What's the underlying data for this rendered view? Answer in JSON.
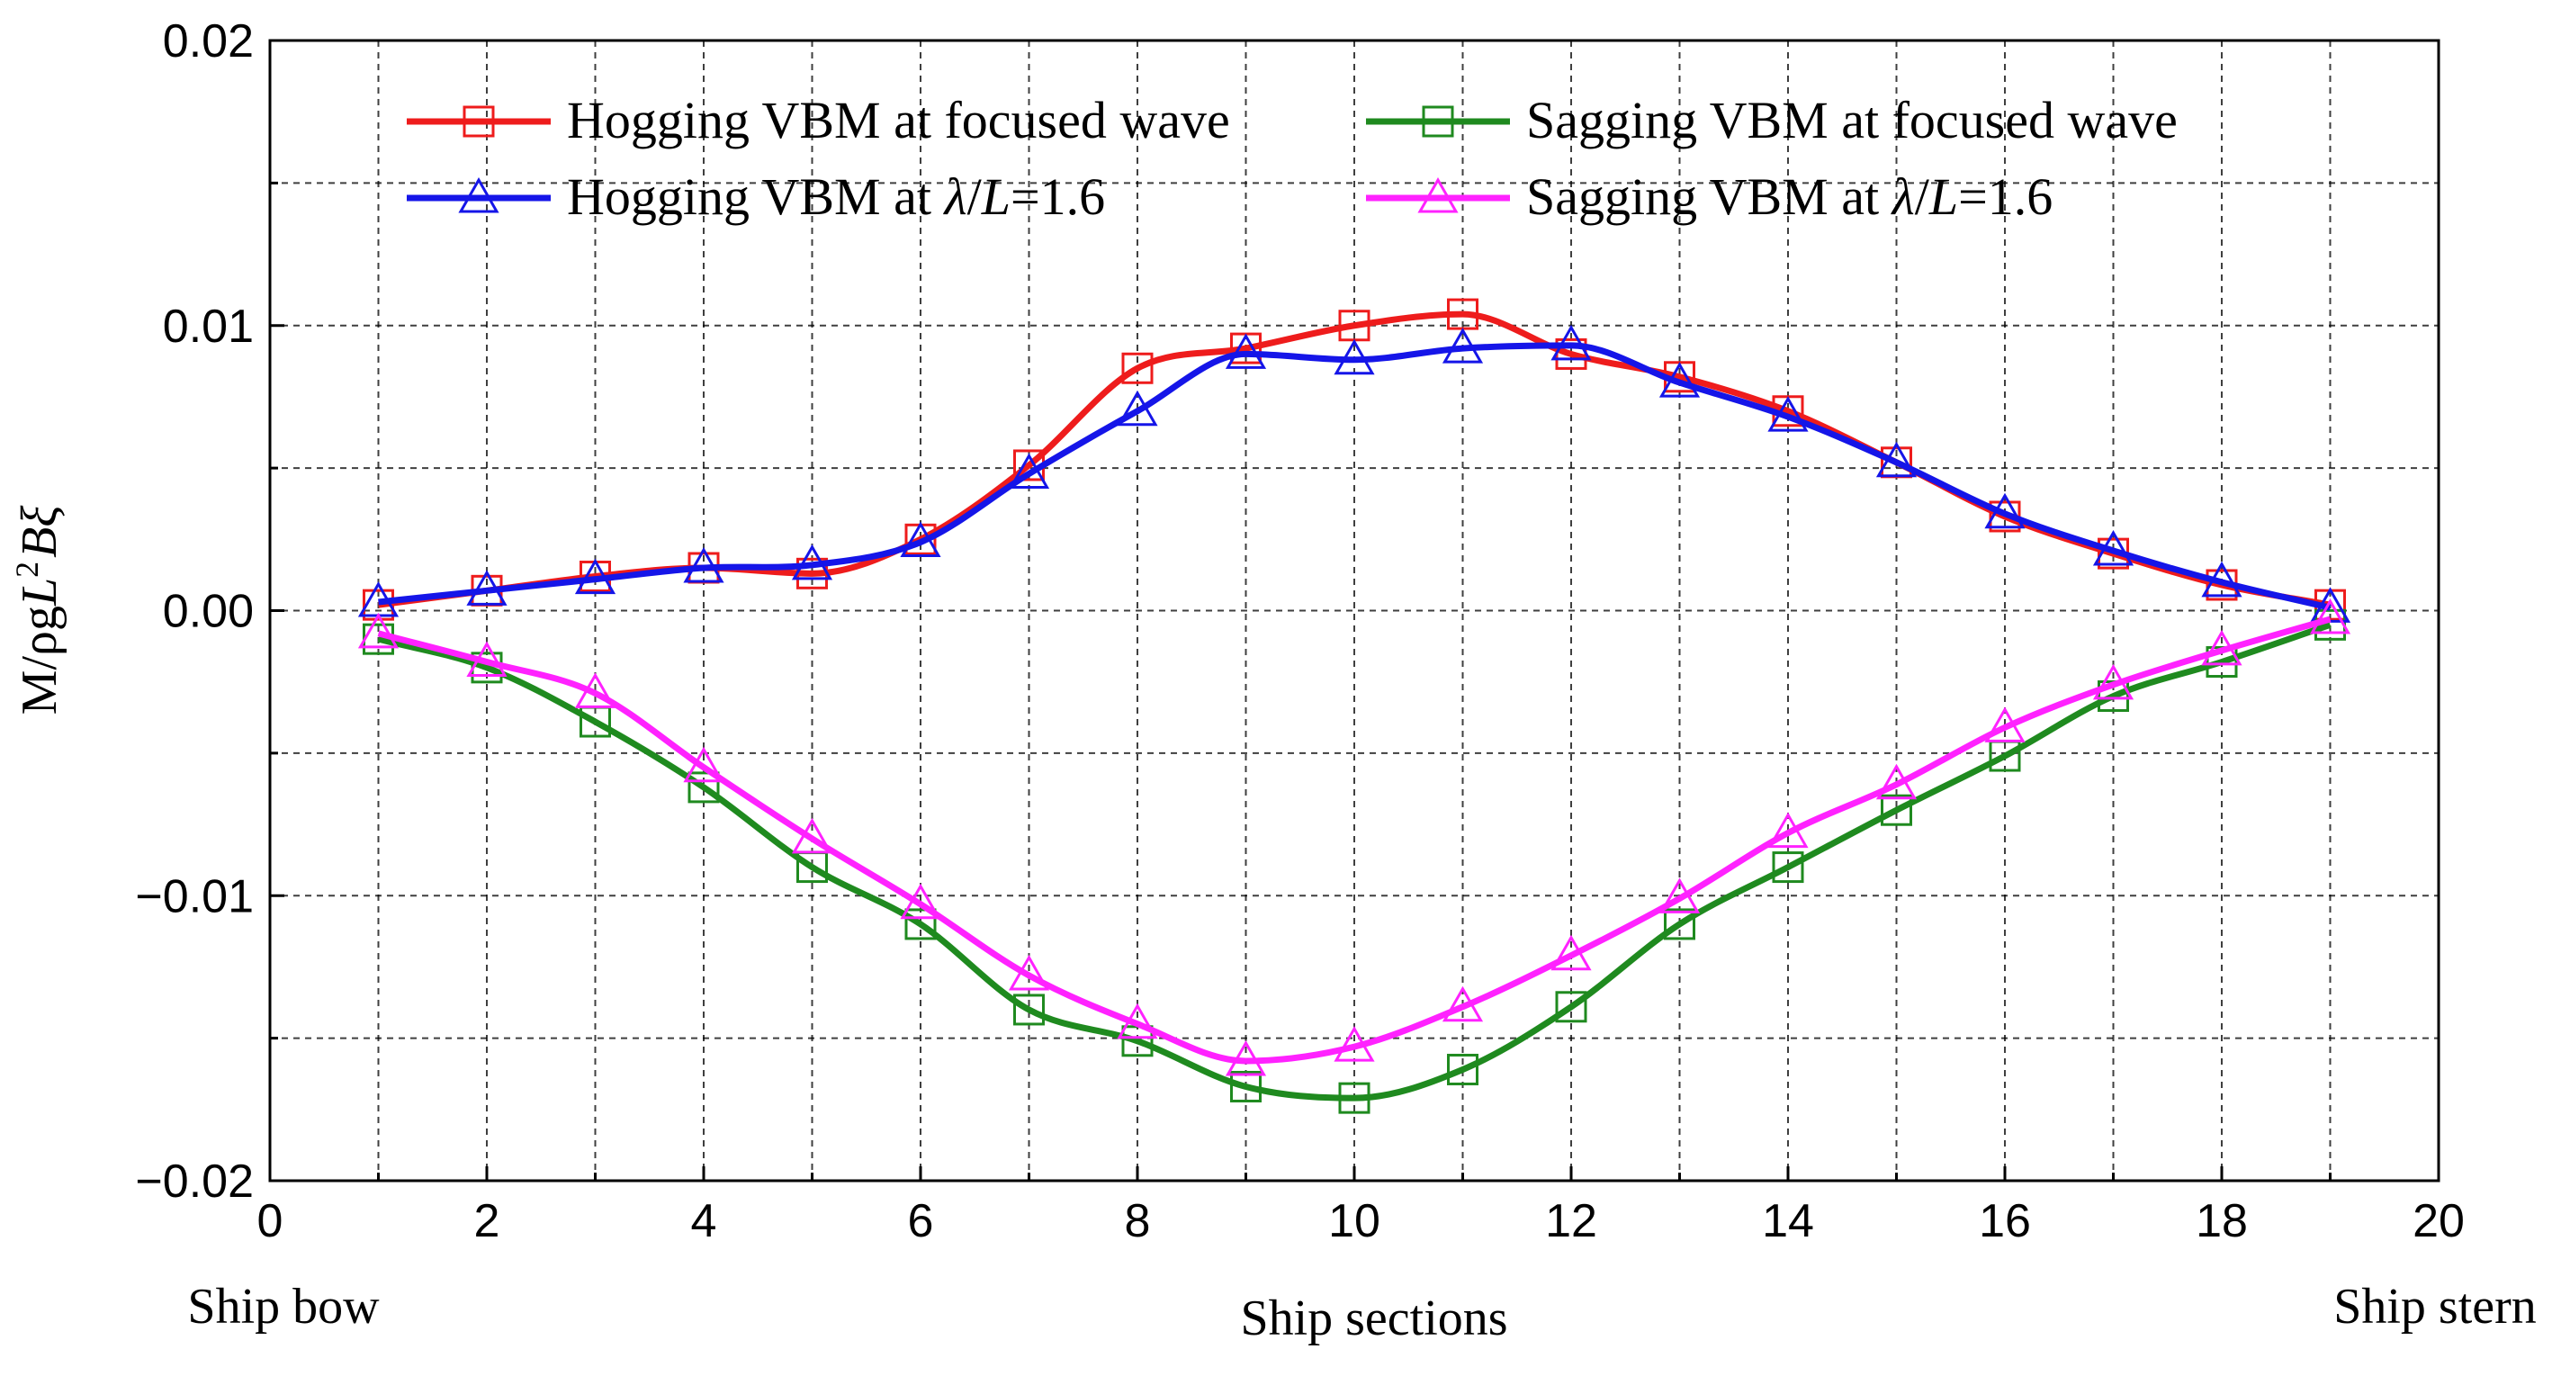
{
  "chart_data": {
    "type": "line",
    "title": "",
    "xlabel": "Ship sections",
    "ylabel": "M/ρgL²Bξ",
    "ylabel_parts": {
      "base": "M/ρg",
      "l": "L",
      "sup": "2",
      "b": "B",
      "xi": "ξ"
    },
    "x_end_labels": {
      "left": "Ship bow",
      "right": "Ship stern"
    },
    "xlim": [
      0,
      20
    ],
    "ylim": [
      -0.02,
      0.02
    ],
    "x_ticks": [
      "0",
      "2",
      "4",
      "6",
      "8",
      "10",
      "12",
      "14",
      "16",
      "18",
      "20"
    ],
    "y_ticks": [
      "−0.02",
      "−0.01",
      "0.00",
      "0.01",
      "0.02"
    ],
    "grid": true,
    "legend_position": "top",
    "x": [
      1,
      2,
      3,
      4,
      5,
      6,
      7,
      8,
      9,
      10,
      11,
      12,
      13,
      14,
      15,
      16,
      17,
      18,
      19
    ],
    "series": [
      {
        "name": "Hogging VBM at focused wave",
        "legend_parts": [
          "Hogging VBM at focused wave"
        ],
        "color": "#ee1c1c",
        "marker": "square",
        "values": [
          0.0002,
          0.0007,
          0.0012,
          0.0015,
          0.0013,
          0.0025,
          0.0051,
          0.0085,
          0.0092,
          0.01,
          0.0104,
          0.009,
          0.0082,
          0.007,
          0.0052,
          0.0033,
          0.002,
          0.0009,
          0.0002
        ]
      },
      {
        "name": "Sagging VBM at focused wave",
        "legend_parts": [
          "Sagging VBM at focused wave"
        ],
        "color": "#1f8a1f",
        "marker": "square",
        "values": [
          -0.001,
          -0.002,
          -0.0039,
          -0.0062,
          -0.009,
          -0.011,
          -0.014,
          -0.0151,
          -0.0167,
          -0.0171,
          -0.0161,
          -0.0139,
          -0.011,
          -0.009,
          -0.007,
          -0.0051,
          -0.003,
          -0.0018,
          -0.0005
        ]
      },
      {
        "name": "Hogging VBM at λ/L=1.6",
        "legend_parts": [
          "Hogging VBM at ",
          "λ",
          "/",
          "L",
          "=1.6"
        ],
        "color": "#1515e8",
        "marker": "triangle",
        "values": [
          0.0003,
          0.0007,
          0.0011,
          0.0015,
          0.0016,
          0.0024,
          0.0048,
          0.007,
          0.009,
          0.0088,
          0.0092,
          0.0093,
          0.008,
          0.0068,
          0.0052,
          0.0034,
          0.0021,
          0.001,
          0.0001
        ]
      },
      {
        "name": "Sagging VBM at λ/L=1.6",
        "legend_parts": [
          "Sagging VBM at ",
          "λ",
          "/",
          "L",
          "=1.6"
        ],
        "color": "#ff22ff",
        "marker": "triangle",
        "values": [
          -0.0008,
          -0.0018,
          -0.0029,
          -0.0055,
          -0.008,
          -0.0103,
          -0.0128,
          -0.0145,
          -0.0158,
          -0.0153,
          -0.0139,
          -0.0121,
          -0.0101,
          -0.0078,
          -0.0061,
          -0.0041,
          -0.0026,
          -0.0014,
          -0.0003
        ]
      }
    ]
  }
}
